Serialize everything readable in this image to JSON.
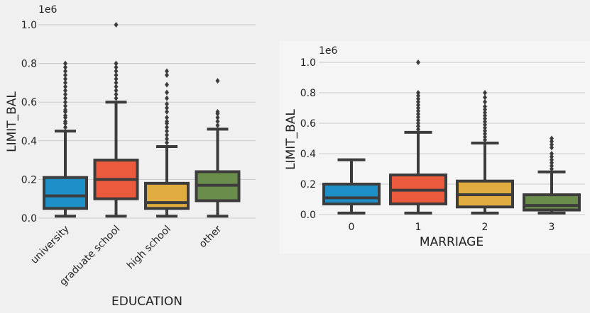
{
  "chart_data": [
    {
      "type": "box",
      "xlabel": "EDUCATION",
      "ylabel": "LIMIT_BAL",
      "scale_label": "1e6",
      "ylim": [
        -0.03,
        1.03
      ],
      "yticks": [
        "0.0",
        "0.2",
        "0.4",
        "0.6",
        "0.8",
        "1.0"
      ],
      "grid": true,
      "x_tick_rotation": 45,
      "categories": [
        "university",
        "graduate school",
        "high school",
        "other"
      ],
      "boxes": [
        {
          "category": "university",
          "color": "#1f8fc8",
          "whislo": 0.01,
          "q1": 0.05,
          "med": 0.115,
          "q3": 0.21,
          "whishi": 0.45,
          "fliers": [
            0.47,
            0.49,
            0.5,
            0.52,
            0.53,
            0.55,
            0.56,
            0.58,
            0.6,
            0.62,
            0.64,
            0.66,
            0.68,
            0.7,
            0.72,
            0.74,
            0.76,
            0.78,
            0.8
          ]
        },
        {
          "category": "graduate school",
          "color": "#eb5a3c",
          "whislo": 0.01,
          "q1": 0.1,
          "med": 0.2,
          "q3": 0.3,
          "whishi": 0.6,
          "fliers": [
            0.62,
            0.64,
            0.66,
            0.68,
            0.7,
            0.72,
            0.74,
            0.76,
            0.78,
            0.8,
            1.0
          ]
        },
        {
          "category": "high school",
          "color": "#e0ac3f",
          "whislo": 0.01,
          "q1": 0.05,
          "med": 0.08,
          "q3": 0.18,
          "whishi": 0.37,
          "fliers": [
            0.39,
            0.41,
            0.43,
            0.45,
            0.47,
            0.49,
            0.5,
            0.52,
            0.55,
            0.57,
            0.59,
            0.62,
            0.65,
            0.69,
            0.74,
            0.76
          ]
        },
        {
          "category": "other",
          "color": "#6b8d4c",
          "whislo": 0.01,
          "q1": 0.09,
          "med": 0.17,
          "q3": 0.24,
          "whishi": 0.46,
          "fliers": [
            0.48,
            0.5,
            0.52,
            0.54,
            0.55,
            0.71
          ]
        }
      ]
    },
    {
      "type": "box",
      "xlabel": "MARRIAGE",
      "ylabel": "LIMIT_BAL",
      "scale_label": "1e6",
      "ylim": [
        -0.03,
        1.05
      ],
      "yticks": [
        "0.0",
        "0.2",
        "0.4",
        "0.6",
        "0.8",
        "1.0"
      ],
      "grid": true,
      "x_tick_rotation": 0,
      "categories": [
        "0",
        "1",
        "2",
        "3"
      ],
      "boxes": [
        {
          "category": "0",
          "color": "#1f8fc8",
          "whislo": 0.01,
          "q1": 0.07,
          "med": 0.11,
          "q3": 0.2,
          "whishi": 0.36,
          "fliers": []
        },
        {
          "category": "1",
          "color": "#eb5a3c",
          "whislo": 0.01,
          "q1": 0.07,
          "med": 0.16,
          "q3": 0.26,
          "whishi": 0.54,
          "fliers": [
            0.56,
            0.58,
            0.6,
            0.62,
            0.64,
            0.66,
            0.68,
            0.7,
            0.72,
            0.74,
            0.76,
            0.78,
            0.8,
            1.0
          ]
        },
        {
          "category": "2",
          "color": "#e0ac3f",
          "whislo": 0.01,
          "q1": 0.05,
          "med": 0.13,
          "q3": 0.22,
          "whishi": 0.47,
          "fliers": [
            0.49,
            0.51,
            0.53,
            0.55,
            0.57,
            0.59,
            0.61,
            0.63,
            0.65,
            0.67,
            0.69,
            0.71,
            0.74,
            0.77,
            0.8
          ]
        },
        {
          "category": "3",
          "color": "#6b8d4c",
          "whislo": 0.01,
          "q1": 0.03,
          "med": 0.06,
          "q3": 0.13,
          "whishi": 0.28,
          "fliers": [
            0.3,
            0.32,
            0.34,
            0.36,
            0.38,
            0.4,
            0.44,
            0.46,
            0.48,
            0.5
          ]
        }
      ]
    }
  ]
}
